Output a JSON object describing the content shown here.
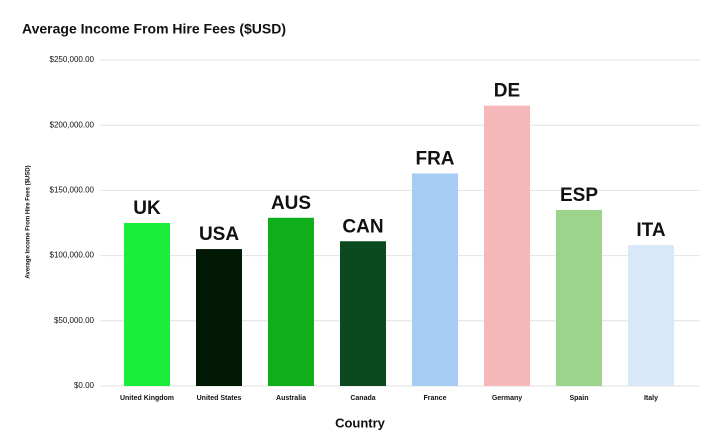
{
  "chart_data": {
    "type": "bar",
    "title": "Average Income From Hire Fees ($USD)",
    "x_label": "Country",
    "y_label": "Average Income From Hire Fees ($USD)",
    "categories": [
      "United Kingdom",
      "United States",
      "Australia",
      "Canada",
      "France",
      "Germany",
      "Spain",
      "Italy"
    ],
    "values": [
      125000,
      105000,
      129000,
      111000,
      163000,
      215000,
      135000,
      108000
    ],
    "annotations": [
      "UK",
      "USA",
      "AUS",
      "CAN",
      "FRA",
      "DE",
      "ESP",
      "ITA"
    ],
    "colors": [
      "#1aee3a",
      "#021a05",
      "#0fae1a",
      "#0b4a1f",
      "#a8cdf5",
      "#f5b8b8",
      "#9bd48a",
      "#d8e8f8"
    ],
    "ylim": [
      0,
      250000
    ],
    "yticks": [
      {
        "value": 0,
        "label": "$0.00"
      },
      {
        "value": 50000,
        "label": "$50,000.00"
      },
      {
        "value": 100000,
        "label": "$100,000.00"
      },
      {
        "value": 150000,
        "label": "$150,000.00"
      },
      {
        "value": 200000,
        "label": "$200,000.00"
      },
      {
        "value": 250000,
        "label": "$250,000.00"
      }
    ],
    "grid": true
  }
}
